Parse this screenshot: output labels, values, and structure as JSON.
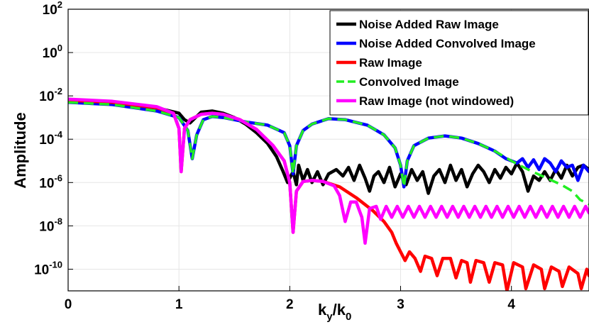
{
  "chart_data": {
    "type": "line",
    "title": "",
    "xlabel": {
      "main": "k",
      "sub1": "y",
      "sep": "/k",
      "sub2": "0"
    },
    "ylabel": "Amplitude",
    "xlim": [
      0,
      4.7
    ],
    "ylim_log10": [
      -11,
      2
    ],
    "xscale": "linear",
    "yscale": "log",
    "grid": true,
    "legend_position": "top-right",
    "x_ticks": [
      {
        "value": 0,
        "label": "0"
      },
      {
        "value": 1,
        "label": "1"
      },
      {
        "value": 2,
        "label": "2"
      },
      {
        "value": 3,
        "label": "3"
      },
      {
        "value": 4,
        "label": "4"
      }
    ],
    "y_ticks": [
      {
        "log10": 2,
        "base": "10",
        "exp": "2"
      },
      {
        "log10": 0,
        "base": "10",
        "exp": "0"
      },
      {
        "log10": -2,
        "base": "10",
        "exp": "-2"
      },
      {
        "log10": -4,
        "base": "10",
        "exp": "-4"
      },
      {
        "log10": -6,
        "base": "10",
        "exp": "-6"
      },
      {
        "log10": -8,
        "base": "10",
        "exp": "-8"
      },
      {
        "log10": -10,
        "base": "10",
        "exp": "-10"
      }
    ],
    "series": [
      {
        "name": "Noise Added Raw Image",
        "color": "#000000",
        "dash": "solid",
        "points": [
          [
            0,
            -2.2
          ],
          [
            0.4,
            -2.3
          ],
          [
            0.8,
            -2.55
          ],
          [
            1.0,
            -2.8
          ],
          [
            1.05,
            -3.1
          ],
          [
            1.1,
            -3.25
          ],
          [
            1.15,
            -3.0
          ],
          [
            1.2,
            -2.75
          ],
          [
            1.3,
            -2.7
          ],
          [
            1.4,
            -2.8
          ],
          [
            1.5,
            -3.0
          ],
          [
            1.6,
            -3.3
          ],
          [
            1.7,
            -3.7
          ],
          [
            1.8,
            -4.2
          ],
          [
            1.88,
            -4.8
          ],
          [
            1.94,
            -5.5
          ],
          [
            1.98,
            -6.0
          ],
          [
            2.03,
            -5.5
          ],
          [
            2.06,
            -6.1
          ],
          [
            2.08,
            -5.2
          ],
          [
            2.12,
            -5.9
          ],
          [
            2.16,
            -5.4
          ],
          [
            2.2,
            -6.0
          ],
          [
            2.25,
            -5.5
          ],
          [
            2.3,
            -6.1
          ],
          [
            2.35,
            -5.6
          ],
          [
            2.42,
            -5.4
          ],
          [
            2.48,
            -5.7
          ],
          [
            2.53,
            -5.3
          ],
          [
            2.58,
            -5.9
          ],
          [
            2.63,
            -5.2
          ],
          [
            2.68,
            -5.8
          ],
          [
            2.72,
            -6.4
          ],
          [
            2.76,
            -5.7
          ],
          [
            2.8,
            -5.5
          ],
          [
            2.85,
            -6.0
          ],
          [
            2.9,
            -5.3
          ],
          [
            2.95,
            -6.2
          ],
          [
            3.0,
            -5.6
          ],
          [
            3.05,
            -6.1
          ],
          [
            3.1,
            -5.4
          ],
          [
            3.15,
            -5.9
          ],
          [
            3.2,
            -5.5
          ],
          [
            3.25,
            -6.5
          ],
          [
            3.3,
            -5.7
          ],
          [
            3.35,
            -5.4
          ],
          [
            3.4,
            -6.0
          ],
          [
            3.45,
            -5.2
          ],
          [
            3.5,
            -5.9
          ],
          [
            3.55,
            -5.4
          ],
          [
            3.6,
            -6.2
          ],
          [
            3.65,
            -5.6
          ],
          [
            3.7,
            -5.2
          ],
          [
            3.75,
            -5.5
          ],
          [
            3.8,
            -6.0
          ],
          [
            3.85,
            -5.4
          ],
          [
            3.9,
            -5.8
          ],
          [
            3.95,
            -5.3
          ],
          [
            4.0,
            -5.6
          ],
          [
            4.05,
            -5.1
          ],
          [
            4.1,
            -5.5
          ],
          [
            4.15,
            -6.4
          ],
          [
            4.2,
            -5.7
          ],
          [
            4.25,
            -5.9
          ],
          [
            4.3,
            -5.5
          ],
          [
            4.35,
            -5.9
          ],
          [
            4.4,
            -5.4
          ],
          [
            4.45,
            -5.8
          ],
          [
            4.5,
            -5.2
          ],
          [
            4.55,
            -5.7
          ],
          [
            4.6,
            -5.3
          ],
          [
            4.65,
            -5.2
          ],
          [
            4.7,
            -5.4
          ]
        ]
      },
      {
        "name": "Noise Added Convolved Image",
        "color": "#0000ff",
        "dash": "solid",
        "points": [
          [
            0,
            -2.3
          ],
          [
            0.4,
            -2.4
          ],
          [
            0.8,
            -2.7
          ],
          [
            1.0,
            -3.0
          ],
          [
            1.08,
            -3.6
          ],
          [
            1.12,
            -4.9
          ],
          [
            1.16,
            -3.8
          ],
          [
            1.22,
            -3.1
          ],
          [
            1.3,
            -2.95
          ],
          [
            1.4,
            -3.0
          ],
          [
            1.6,
            -3.2
          ],
          [
            1.8,
            -3.35
          ],
          [
            1.95,
            -3.7
          ],
          [
            2.0,
            -4.3
          ],
          [
            2.03,
            -5.6
          ],
          [
            2.06,
            -4.3
          ],
          [
            2.12,
            -3.6
          ],
          [
            2.2,
            -3.3
          ],
          [
            2.35,
            -3.05
          ],
          [
            2.5,
            -3.1
          ],
          [
            2.7,
            -3.35
          ],
          [
            2.85,
            -3.8
          ],
          [
            2.95,
            -4.4
          ],
          [
            3.0,
            -5.2
          ],
          [
            3.03,
            -6.2
          ],
          [
            3.06,
            -5.0
          ],
          [
            3.12,
            -4.3
          ],
          [
            3.25,
            -3.95
          ],
          [
            3.4,
            -3.85
          ],
          [
            3.55,
            -3.95
          ],
          [
            3.7,
            -4.2
          ],
          [
            3.85,
            -4.55
          ],
          [
            3.95,
            -4.9
          ],
          [
            4.05,
            -5.1
          ],
          [
            4.1,
            -4.9
          ],
          [
            4.15,
            -5.3
          ],
          [
            4.2,
            -4.95
          ],
          [
            4.25,
            -5.4
          ],
          [
            4.3,
            -4.9
          ],
          [
            4.35,
            -5.1
          ],
          [
            4.4,
            -5.5
          ],
          [
            4.45,
            -5.0
          ],
          [
            4.5,
            -5.3
          ],
          [
            4.55,
            -5.2
          ],
          [
            4.6,
            -5.9
          ],
          [
            4.65,
            -5.2
          ],
          [
            4.7,
            -5.5
          ]
        ]
      },
      {
        "name": "Raw Image",
        "color": "#ff0000",
        "dash": "solid",
        "points": [
          [
            0,
            -2.2
          ],
          [
            0.4,
            -2.3
          ],
          [
            0.8,
            -2.55
          ],
          [
            0.95,
            -2.8
          ],
          [
            1.0,
            -3.5
          ],
          [
            1.02,
            -5.5
          ],
          [
            1.05,
            -3.5
          ],
          [
            1.1,
            -3.1
          ],
          [
            1.2,
            -2.85
          ],
          [
            1.3,
            -2.8
          ],
          [
            1.4,
            -2.85
          ],
          [
            1.55,
            -3.1
          ],
          [
            1.7,
            -3.55
          ],
          [
            1.85,
            -4.3
          ],
          [
            1.95,
            -5.0
          ],
          [
            2.0,
            -6.0
          ],
          [
            2.03,
            -8.3
          ],
          [
            2.06,
            -6.4
          ],
          [
            2.12,
            -5.95
          ],
          [
            2.2,
            -5.9
          ],
          [
            2.3,
            -5.95
          ],
          [
            2.45,
            -6.2
          ],
          [
            2.6,
            -6.7
          ],
          [
            2.75,
            -7.3
          ],
          [
            2.85,
            -7.8
          ],
          [
            2.92,
            -8.3
          ],
          [
            2.96,
            -8.8
          ],
          [
            3.0,
            -9.2
          ],
          [
            3.04,
            -9.6
          ],
          [
            3.08,
            -9.2
          ],
          [
            3.13,
            -9.5
          ],
          [
            3.18,
            -10.1
          ],
          [
            3.22,
            -9.4
          ],
          [
            3.28,
            -9.5
          ],
          [
            3.33,
            -10.3
          ],
          [
            3.38,
            -9.5
          ],
          [
            3.45,
            -9.5
          ],
          [
            3.5,
            -10.4
          ],
          [
            3.55,
            -9.6
          ],
          [
            3.6,
            -9.7
          ],
          [
            3.63,
            -10.6
          ],
          [
            3.68,
            -9.6
          ],
          [
            3.75,
            -9.7
          ],
          [
            3.8,
            -10.6
          ],
          [
            3.85,
            -9.7
          ],
          [
            3.92,
            -9.8
          ],
          [
            3.96,
            -11.0
          ],
          [
            4.02,
            -9.7
          ],
          [
            4.1,
            -9.9
          ],
          [
            4.13,
            -10.9
          ],
          [
            4.2,
            -9.8
          ],
          [
            4.27,
            -10.0
          ],
          [
            4.3,
            -10.9
          ],
          [
            4.36,
            -9.9
          ],
          [
            4.43,
            -10.1
          ],
          [
            4.46,
            -10.8
          ],
          [
            4.52,
            -9.9
          ],
          [
            4.6,
            -10.2
          ],
          [
            4.63,
            -10.9
          ],
          [
            4.68,
            -10.0
          ],
          [
            4.7,
            -10.3
          ]
        ]
      },
      {
        "name": "Convolved Image",
        "color": "#22ee22",
        "dash": "dashed",
        "points": [
          [
            0,
            -2.3
          ],
          [
            0.4,
            -2.4
          ],
          [
            0.8,
            -2.7
          ],
          [
            1.0,
            -3.0
          ],
          [
            1.08,
            -3.6
          ],
          [
            1.12,
            -4.9
          ],
          [
            1.16,
            -3.8
          ],
          [
            1.22,
            -3.1
          ],
          [
            1.3,
            -2.95
          ],
          [
            1.4,
            -3.0
          ],
          [
            1.6,
            -3.2
          ],
          [
            1.8,
            -3.35
          ],
          [
            1.95,
            -3.7
          ],
          [
            2.0,
            -4.3
          ],
          [
            2.03,
            -5.6
          ],
          [
            2.06,
            -4.3
          ],
          [
            2.12,
            -3.6
          ],
          [
            2.2,
            -3.3
          ],
          [
            2.35,
            -3.05
          ],
          [
            2.5,
            -3.1
          ],
          [
            2.7,
            -3.35
          ],
          [
            2.85,
            -3.8
          ],
          [
            2.95,
            -4.4
          ],
          [
            3.0,
            -5.2
          ],
          [
            3.03,
            -6.2
          ],
          [
            3.06,
            -5.0
          ],
          [
            3.12,
            -4.3
          ],
          [
            3.25,
            -3.95
          ],
          [
            3.4,
            -3.85
          ],
          [
            3.55,
            -3.95
          ],
          [
            3.7,
            -4.2
          ],
          [
            3.85,
            -4.55
          ],
          [
            4.0,
            -5.0
          ],
          [
            4.15,
            -5.4
          ],
          [
            4.3,
            -5.75
          ],
          [
            4.45,
            -6.1
          ],
          [
            4.55,
            -6.4
          ],
          [
            4.62,
            -6.8
          ],
          [
            4.7,
            -7.0
          ]
        ]
      },
      {
        "name": "Raw Image (not windowed)",
        "color": "#ff00ff",
        "dash": "solid",
        "points": [
          [
            0,
            -2.15
          ],
          [
            0.4,
            -2.25
          ],
          [
            0.8,
            -2.5
          ],
          [
            0.95,
            -2.8
          ],
          [
            1.0,
            -3.5
          ],
          [
            1.02,
            -5.5
          ],
          [
            1.05,
            -3.5
          ],
          [
            1.1,
            -3.1
          ],
          [
            1.2,
            -2.85
          ],
          [
            1.3,
            -2.8
          ],
          [
            1.4,
            -2.85
          ],
          [
            1.55,
            -3.1
          ],
          [
            1.7,
            -3.55
          ],
          [
            1.85,
            -4.3
          ],
          [
            1.95,
            -5.0
          ],
          [
            2.0,
            -6.0
          ],
          [
            2.03,
            -8.3
          ],
          [
            2.06,
            -6.4
          ],
          [
            2.12,
            -5.95
          ],
          [
            2.2,
            -5.9
          ],
          [
            2.3,
            -5.95
          ],
          [
            2.4,
            -6.15
          ],
          [
            2.45,
            -6.6
          ],
          [
            2.5,
            -7.8
          ],
          [
            2.55,
            -6.9
          ],
          [
            2.6,
            -6.9
          ],
          [
            2.65,
            -7.6
          ],
          [
            2.68,
            -8.8
          ],
          [
            2.72,
            -7.2
          ],
          [
            2.78,
            -7.1
          ],
          [
            2.82,
            -7.7
          ],
          [
            2.87,
            -7.1
          ],
          [
            2.92,
            -7.6
          ],
          [
            2.97,
            -7.1
          ],
          [
            3.02,
            -7.6
          ],
          [
            3.07,
            -7.1
          ],
          [
            3.12,
            -7.6
          ],
          [
            3.17,
            -7.1
          ],
          [
            3.22,
            -7.6
          ],
          [
            3.27,
            -7.1
          ],
          [
            3.32,
            -7.6
          ],
          [
            3.37,
            -7.1
          ],
          [
            3.42,
            -7.6
          ],
          [
            3.47,
            -7.1
          ],
          [
            3.52,
            -7.6
          ],
          [
            3.57,
            -7.1
          ],
          [
            3.62,
            -7.6
          ],
          [
            3.67,
            -7.1
          ],
          [
            3.72,
            -7.6
          ],
          [
            3.77,
            -7.1
          ],
          [
            3.82,
            -7.6
          ],
          [
            3.87,
            -7.1
          ],
          [
            3.92,
            -7.6
          ],
          [
            3.97,
            -7.1
          ],
          [
            4.02,
            -7.6
          ],
          [
            4.07,
            -7.1
          ],
          [
            4.12,
            -7.6
          ],
          [
            4.17,
            -7.1
          ],
          [
            4.22,
            -7.6
          ],
          [
            4.27,
            -7.1
          ],
          [
            4.32,
            -7.6
          ],
          [
            4.37,
            -7.1
          ],
          [
            4.42,
            -7.6
          ],
          [
            4.47,
            -7.1
          ],
          [
            4.52,
            -7.6
          ],
          [
            4.57,
            -7.1
          ],
          [
            4.62,
            -7.6
          ],
          [
            4.67,
            -7.1
          ],
          [
            4.7,
            -7.4
          ]
        ]
      }
    ]
  }
}
